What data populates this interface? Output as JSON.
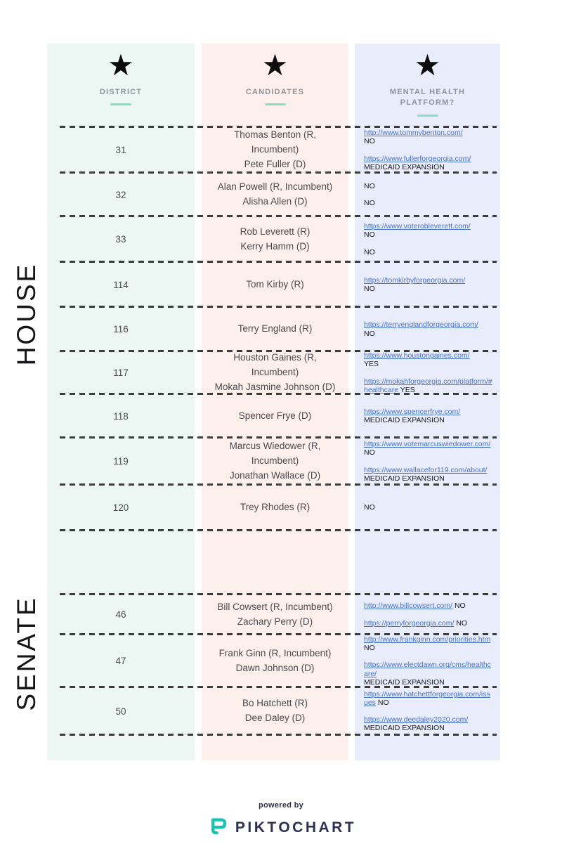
{
  "header": {
    "star_icon": "★",
    "columns": [
      {
        "label": "DISTRICT"
      },
      {
        "label": "CANDIDATES"
      },
      {
        "label": "MENTAL HEALTH PLATFORM?"
      }
    ]
  },
  "sections": [
    {
      "label": "HOUSE"
    },
    {
      "label": "SENATE"
    }
  ],
  "rows": [
    {
      "section": "house",
      "district": "31",
      "candidates": [
        "Thomas Benton (R, Incumbent)",
        "Pete Fuller (D)"
      ],
      "platform": [
        {
          "link": "http://www.tommybenton.com/",
          "answer": "NO",
          "inline": false
        },
        {
          "link": "https://www.fullerforgeorgia.com/",
          "answer": "MEDICAID EXPANSION",
          "inline": false
        }
      ]
    },
    {
      "section": "house",
      "district": "32",
      "candidates": [
        "Alan Powell (R, Incumbent)",
        "Alisha Allen (D)"
      ],
      "platform": [
        {
          "answer": "NO"
        },
        {
          "answer": "NO"
        }
      ]
    },
    {
      "section": "house",
      "district": "33",
      "candidates": [
        "Rob Leverett (R)",
        "Kerry Hamm (D)"
      ],
      "platform": [
        {
          "link": "https://www.voterobleverett.com/",
          "answer": "NO",
          "inline": false
        },
        {
          "answer": "NO"
        }
      ]
    },
    {
      "section": "house",
      "district": "114",
      "candidates": [
        "Tom Kirby (R)"
      ],
      "platform": [
        {
          "link": "https://tomkirbyforgeorgia.com/",
          "answer": "NO",
          "inline": false
        }
      ]
    },
    {
      "section": "house",
      "district": "116",
      "candidates": [
        "Terry England (R)"
      ],
      "platform": [
        {
          "link": "https://terryenglandforgeorgia.com/",
          "answer": "NO",
          "inline": false
        }
      ]
    },
    {
      "section": "house",
      "district": "117",
      "candidates": [
        "Houston Gaines (R, Incumbent)",
        "Mokah Jasmine Johnson (D)"
      ],
      "platform": [
        {
          "link": "https://www.houstongaines.com/",
          "answer": "YES",
          "inline": false
        },
        {
          "link": "https://mokahforgeorgia.com/platform/#healthcare",
          "answer": "YES",
          "inline": true
        }
      ]
    },
    {
      "section": "house",
      "district": "118",
      "candidates": [
        "Spencer Frye (D)"
      ],
      "platform": [
        {
          "link": "https://www.spencerfrye.com/",
          "answer": "MEDICAID EXPANSION",
          "inline": false
        }
      ]
    },
    {
      "section": "house",
      "district": "119",
      "candidates": [
        "Marcus Wiedower (R, Incumbent)",
        "Jonathan Wallace (D)"
      ],
      "platform": [
        {
          "link": "https://www.votemarcuswiedower.com/",
          "answer": "NO",
          "inline": true
        },
        {
          "link": "https://www.wallacefor119.com/about/",
          "answer": "MEDICAID EXPANSION",
          "inline": true
        }
      ]
    },
    {
      "section": "house",
      "district": "120",
      "candidates": [
        "Trey Rhodes (R)"
      ],
      "platform": [
        {
          "answer": "NO"
        }
      ]
    },
    {
      "empty": true
    },
    {
      "section": "senate",
      "district": "46",
      "candidates": [
        "Bill Cowsert (R, Incumbent)",
        "Zachary Perry (D)"
      ],
      "platform": [
        {
          "link": "http://www.billcowsert.com/",
          "answer": "NO",
          "inline": true
        },
        {
          "link": "https://perryforgeorgia.com/",
          "answer": "NO",
          "inline": true
        }
      ]
    },
    {
      "section": "senate",
      "district": "47",
      "candidates": [
        "Frank Ginn (R, Incumbent)",
        "Dawn Johnson (D)"
      ],
      "platform": [
        {
          "link": "http://www.frankginn.com/priorities.htm",
          "answer": "NO",
          "inline": true
        },
        {
          "link": "https://www.electdawn.org/cms/healthcare/",
          "answer": "MEDICAID EXPANSION",
          "inline": false
        }
      ]
    },
    {
      "section": "senate",
      "district": "50",
      "candidates": [
        "Bo Hatchett (R)",
        "Dee Daley (D)"
      ],
      "platform": [
        {
          "link": "https://www.hatchettforgeorgia.com/issues",
          "answer": "NO",
          "inline": true
        },
        {
          "link": "https://www.deedaley2020.com/",
          "answer": "MEDICAID EXPANSION",
          "inline": false
        }
      ]
    }
  ],
  "footer": {
    "powered_by": "powered by",
    "brand": "PIKTOCHART"
  },
  "colors": {
    "district_column": "#ecf7f3",
    "candidates_column": "#fdefec",
    "platform_column": "#e9ecfb",
    "accent_underline": "#85dfc7",
    "link_blue": "#4472c8",
    "dash_gray": "#3c3c3c",
    "brand_navy": "#2d3150",
    "brand_teal": "#19c3b2"
  }
}
